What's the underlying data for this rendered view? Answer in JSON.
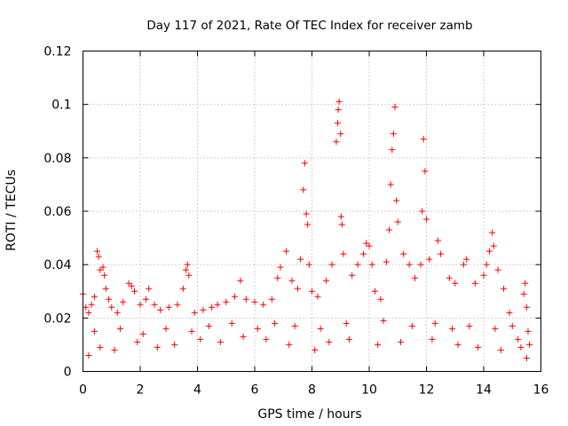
{
  "chart_data": {
    "type": "scatter",
    "title": "Day 117 of 2021, Rate Of TEC Index for receiver zamb",
    "xlabel": "GPS time / hours",
    "ylabel": "ROTI / TECUs",
    "xlim": [
      0,
      16
    ],
    "ylim": [
      0,
      0.12
    ],
    "xticks": [
      0,
      2,
      4,
      6,
      8,
      10,
      12,
      14,
      16
    ],
    "yticks": [
      0,
      0.02,
      0.04,
      0.06,
      0.08,
      0.1,
      0.12
    ],
    "xtick_labels": [
      "0",
      "2",
      "4",
      "6",
      "8",
      "10",
      "12",
      "14",
      "16"
    ],
    "ytick_labels": [
      "0",
      "0.02",
      "0.04",
      "0.06",
      "0.08",
      "0.1",
      "0.12"
    ],
    "grid": true,
    "marker": "+",
    "color": "#ff0000",
    "series": [
      {
        "name": "ROTI",
        "points": [
          [
            0.0,
            0.029
          ],
          [
            0.1,
            0.024
          ],
          [
            0.2,
            0.022
          ],
          [
            0.3,
            0.025
          ],
          [
            0.4,
            0.028
          ],
          [
            0.5,
            0.045
          ],
          [
            0.55,
            0.043
          ],
          [
            0.6,
            0.038
          ],
          [
            0.7,
            0.039
          ],
          [
            0.75,
            0.036
          ],
          [
            0.8,
            0.031
          ],
          [
            0.9,
            0.027
          ],
          [
            1.0,
            0.024
          ],
          [
            1.2,
            0.022
          ],
          [
            1.4,
            0.026
          ],
          [
            1.6,
            0.033
          ],
          [
            1.7,
            0.032
          ],
          [
            1.8,
            0.03
          ],
          [
            2.0,
            0.025
          ],
          [
            2.2,
            0.027
          ],
          [
            2.3,
            0.031
          ],
          [
            2.5,
            0.025
          ],
          [
            2.7,
            0.023
          ],
          [
            3.0,
            0.024
          ],
          [
            3.3,
            0.025
          ],
          [
            3.5,
            0.031
          ],
          [
            3.6,
            0.038
          ],
          [
            3.65,
            0.04
          ],
          [
            3.7,
            0.036
          ],
          [
            3.9,
            0.022
          ],
          [
            4.2,
            0.023
          ],
          [
            4.5,
            0.024
          ],
          [
            4.7,
            0.025
          ],
          [
            5.0,
            0.026
          ],
          [
            5.3,
            0.028
          ],
          [
            5.5,
            0.034
          ],
          [
            5.7,
            0.027
          ],
          [
            6.0,
            0.026
          ],
          [
            6.3,
            0.025
          ],
          [
            6.6,
            0.027
          ],
          [
            6.8,
            0.035
          ],
          [
            6.9,
            0.039
          ],
          [
            7.1,
            0.045
          ],
          [
            7.3,
            0.034
          ],
          [
            7.5,
            0.031
          ],
          [
            7.6,
            0.042
          ],
          [
            7.7,
            0.068
          ],
          [
            7.75,
            0.078
          ],
          [
            7.8,
            0.059
          ],
          [
            7.85,
            0.055
          ],
          [
            7.9,
            0.04
          ],
          [
            8.0,
            0.03
          ],
          [
            8.2,
            0.028
          ],
          [
            8.5,
            0.034
          ],
          [
            8.7,
            0.04
          ],
          [
            8.85,
            0.086
          ],
          [
            8.9,
            0.093
          ],
          [
            8.92,
            0.098
          ],
          [
            8.95,
            0.101
          ],
          [
            9.0,
            0.089
          ],
          [
            9.02,
            0.058
          ],
          [
            9.05,
            0.055
          ],
          [
            9.1,
            0.044
          ],
          [
            9.4,
            0.036
          ],
          [
            9.6,
            0.04
          ],
          [
            9.8,
            0.044
          ],
          [
            9.9,
            0.048
          ],
          [
            10.0,
            0.047
          ],
          [
            10.1,
            0.04
          ],
          [
            10.2,
            0.03
          ],
          [
            10.4,
            0.027
          ],
          [
            10.6,
            0.041
          ],
          [
            10.7,
            0.053
          ],
          [
            10.75,
            0.07
          ],
          [
            10.8,
            0.083
          ],
          [
            10.85,
            0.089
          ],
          [
            10.9,
            0.099
          ],
          [
            10.95,
            0.064
          ],
          [
            11.0,
            0.056
          ],
          [
            11.2,
            0.044
          ],
          [
            11.4,
            0.04
          ],
          [
            11.6,
            0.035
          ],
          [
            11.8,
            0.04
          ],
          [
            11.85,
            0.06
          ],
          [
            11.9,
            0.087
          ],
          [
            11.95,
            0.075
          ],
          [
            12.0,
            0.057
          ],
          [
            12.1,
            0.042
          ],
          [
            12.4,
            0.049
          ],
          [
            12.5,
            0.044
          ],
          [
            12.8,
            0.035
          ],
          [
            13.0,
            0.033
          ],
          [
            13.3,
            0.04
          ],
          [
            13.4,
            0.042
          ],
          [
            13.7,
            0.033
          ],
          [
            14.0,
            0.036
          ],
          [
            14.1,
            0.04
          ],
          [
            14.2,
            0.045
          ],
          [
            14.3,
            0.052
          ],
          [
            14.35,
            0.047
          ],
          [
            14.5,
            0.038
          ],
          [
            14.7,
            0.031
          ],
          [
            14.9,
            0.022
          ],
          [
            15.0,
            0.017
          ],
          [
            15.2,
            0.012
          ],
          [
            15.4,
            0.029
          ],
          [
            15.45,
            0.033
          ],
          [
            15.5,
            0.024
          ],
          [
            15.55,
            0.015
          ],
          [
            15.6,
            0.01
          ],
          [
            0.2,
            0.006
          ],
          [
            0.6,
            0.009
          ],
          [
            1.1,
            0.008
          ],
          [
            1.9,
            0.011
          ],
          [
            2.6,
            0.009
          ],
          [
            3.2,
            0.01
          ],
          [
            4.1,
            0.012
          ],
          [
            4.8,
            0.011
          ],
          [
            5.6,
            0.013
          ],
          [
            6.4,
            0.012
          ],
          [
            7.2,
            0.01
          ],
          [
            8.1,
            0.008
          ],
          [
            8.6,
            0.011
          ],
          [
            9.3,
            0.012
          ],
          [
            10.3,
            0.01
          ],
          [
            11.1,
            0.011
          ],
          [
            12.2,
            0.012
          ],
          [
            13.1,
            0.01
          ],
          [
            13.8,
            0.009
          ],
          [
            14.6,
            0.008
          ],
          [
            0.4,
            0.015
          ],
          [
            1.3,
            0.016
          ],
          [
            2.1,
            0.014
          ],
          [
            2.9,
            0.016
          ],
          [
            3.8,
            0.015
          ],
          [
            4.4,
            0.017
          ],
          [
            5.2,
            0.018
          ],
          [
            6.1,
            0.016
          ],
          [
            6.7,
            0.018
          ],
          [
            7.4,
            0.017
          ],
          [
            8.3,
            0.016
          ],
          [
            9.2,
            0.018
          ],
          [
            10.5,
            0.019
          ],
          [
            11.5,
            0.017
          ],
          [
            12.3,
            0.018
          ],
          [
            12.9,
            0.016
          ],
          [
            13.5,
            0.017
          ],
          [
            14.4,
            0.016
          ],
          [
            15.3,
            0.009
          ],
          [
            15.5,
            0.005
          ]
        ]
      }
    ]
  }
}
